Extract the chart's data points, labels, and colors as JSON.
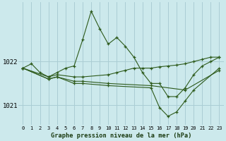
{
  "title": "Graphe pression niveau de la mer (hPa)",
  "background_color": "#cce9ec",
  "grid_color": "#aacdd4",
  "line_color": "#2d5a1b",
  "text_color": "#1a3a10",
  "ylim": [
    1020.55,
    1023.35
  ],
  "ytick_vals": [
    1021.0,
    1022.0
  ],
  "ytick_labels": [
    "1021",
    "1022"
  ],
  "figsize": [
    3.2,
    2.0
  ],
  "dpi": 100,
  "lines": [
    {
      "x": [
        0,
        1,
        2,
        3,
        4,
        5,
        6,
        7,
        8,
        9,
        10,
        11,
        12,
        13,
        14,
        15,
        16,
        17,
        18,
        19,
        20,
        21,
        22,
        23
      ],
      "y": [
        1021.85,
        1021.95,
        1021.75,
        1021.65,
        1021.75,
        1021.85,
        1021.9,
        1022.5,
        1023.15,
        1022.75,
        1022.4,
        1022.55,
        1022.35,
        1022.1,
        1021.75,
        1021.5,
        1021.5,
        1021.2,
        1021.2,
        1021.4,
        1021.7,
        1021.9,
        1022.0,
        1022.1
      ]
    },
    {
      "x": [
        0,
        3,
        4,
        6,
        7,
        10,
        11,
        12,
        13,
        14,
        15,
        16,
        17,
        18,
        19,
        20,
        21,
        22,
        23
      ],
      "y": [
        1021.85,
        1021.65,
        1021.7,
        1021.65,
        1021.65,
        1021.7,
        1021.75,
        1021.8,
        1021.85,
        1021.85,
        1021.85,
        1021.88,
        1021.9,
        1021.92,
        1021.95,
        1022.0,
        1022.05,
        1022.1,
        1022.1
      ]
    },
    {
      "x": [
        0,
        3,
        4,
        6,
        7,
        10,
        15,
        19,
        23
      ],
      "y": [
        1021.85,
        1021.6,
        1021.65,
        1021.55,
        1021.55,
        1021.5,
        1021.45,
        1021.35,
        1021.8
      ]
    },
    {
      "x": [
        0,
        3,
        4,
        6,
        7,
        10,
        15,
        16,
        17,
        18,
        19,
        20,
        23
      ],
      "y": [
        1021.85,
        1021.6,
        1021.65,
        1021.5,
        1021.5,
        1021.45,
        1021.4,
        1020.95,
        1020.75,
        1020.85,
        1021.1,
        1021.35,
        1021.85
      ]
    }
  ]
}
